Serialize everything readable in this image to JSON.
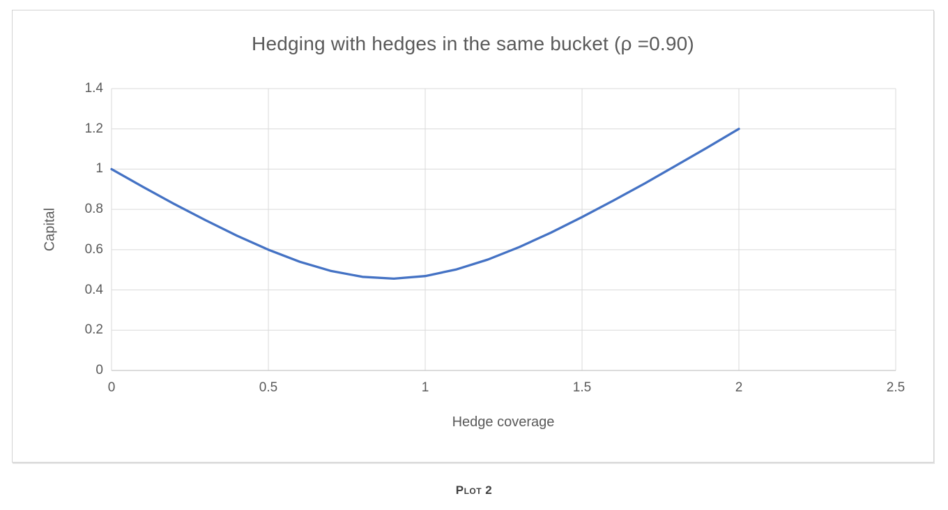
{
  "figure": {
    "caption": "Plot 2"
  },
  "colors": {
    "line": "#4472C4",
    "grid": "#d9d9d9",
    "axis": "#c6c6c6",
    "text": "#595959",
    "caption": "#3f3f3f"
  },
  "chart_data": {
    "type": "line",
    "title": "Hedging with hedges in the same bucket (ρ =0.90)",
    "xlabel": "Hedge coverage",
    "ylabel": "Capital",
    "xlim": [
      0,
      2.5
    ],
    "ylim": [
      0,
      1.4
    ],
    "x_ticks": [
      0,
      0.5,
      1,
      1.5,
      2,
      2.5
    ],
    "x_tick_labels": [
      "0",
      "0.5",
      "1",
      "1.5",
      "2",
      "2.5"
    ],
    "y_ticks": [
      0,
      0.2,
      0.4,
      0.6,
      0.8,
      1,
      1.2,
      1.4
    ],
    "y_tick_labels": [
      "0",
      "0.2",
      "0.4",
      "0.6",
      "0.8",
      "1",
      "1.2",
      "1.4"
    ],
    "grid": true,
    "legend": "none",
    "series": [
      {
        "name": "Capital",
        "x": [
          0,
          0.1,
          0.2,
          0.3,
          0.4,
          0.5,
          0.6,
          0.7,
          0.8,
          0.9,
          1.0,
          1.1,
          1.2,
          1.3,
          1.4,
          1.5,
          1.6,
          1.7,
          1.8,
          1.9,
          2.0
        ],
        "y": [
          1.0,
          0.912,
          0.827,
          0.746,
          0.669,
          0.6,
          0.54,
          0.494,
          0.465,
          0.456,
          0.469,
          0.502,
          0.551,
          0.613,
          0.684,
          0.762,
          0.844,
          0.929,
          1.018,
          1.108,
          1.2
        ]
      }
    ]
  }
}
